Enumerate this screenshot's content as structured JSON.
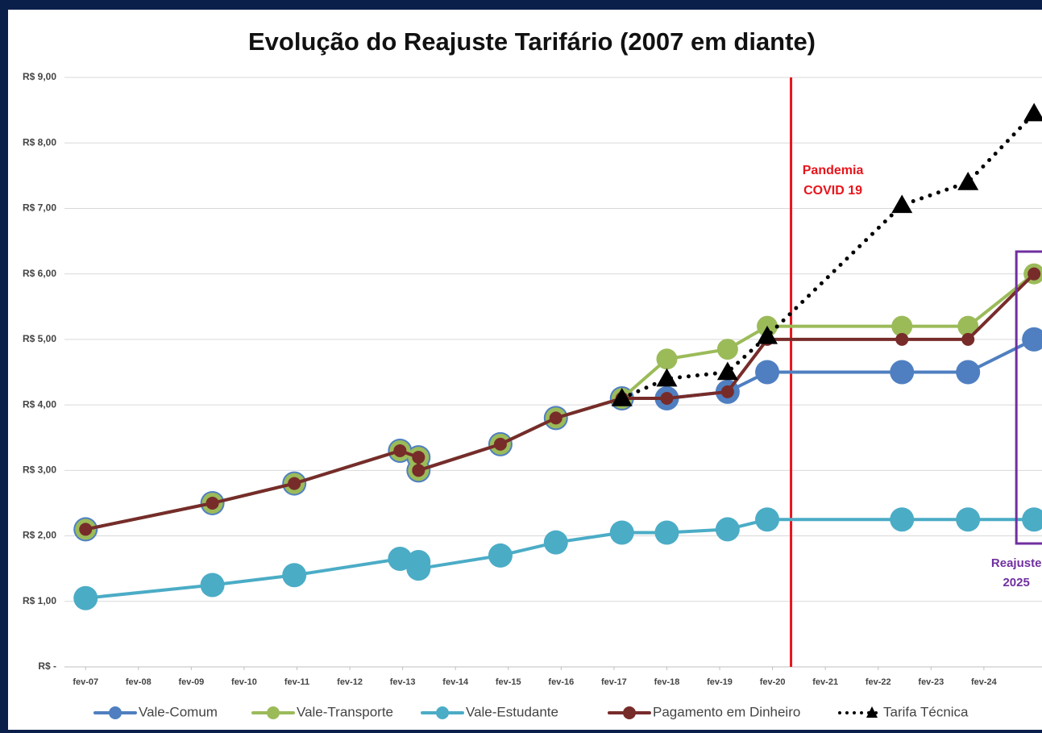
{
  "chart_data": {
    "type": "line",
    "title": "Evolução do Reajuste Tarifário (2007 em diante)",
    "x": [
      2007,
      2009.4,
      2010.95,
      2012.95,
      2013.3,
      2013.3,
      2014.85,
      2015.9,
      2017.15,
      2018.0,
      2019.15,
      2019.9,
      2022.45,
      2023.7,
      2024.95
    ],
    "xlim": [
      2006.6,
      2025.1
    ],
    "xticks": [
      {
        "value": 2007,
        "label": "fev-07"
      },
      {
        "value": 2008,
        "label": "fev-08"
      },
      {
        "value": 2009,
        "label": "fev-09"
      },
      {
        "value": 2010,
        "label": "fev-10"
      },
      {
        "value": 2011,
        "label": "fev-11"
      },
      {
        "value": 2012,
        "label": "fev-12"
      },
      {
        "value": 2013,
        "label": "fev-13"
      },
      {
        "value": 2014,
        "label": "fev-14"
      },
      {
        "value": 2015,
        "label": "fev-15"
      },
      {
        "value": 2016,
        "label": "fev-16"
      },
      {
        "value": 2017,
        "label": "fev-17"
      },
      {
        "value": 2018,
        "label": "fev-18"
      },
      {
        "value": 2019,
        "label": "fev-19"
      },
      {
        "value": 2020,
        "label": "fev-20"
      },
      {
        "value": 2021,
        "label": "fev-21"
      },
      {
        "value": 2022,
        "label": "fev-22"
      },
      {
        "value": 2023,
        "label": "fev-23"
      },
      {
        "value": 2024,
        "label": "fev-24"
      }
    ],
    "ylim": [
      0,
      9
    ],
    "yticks": [
      {
        "value": 0,
        "label": "R$ -"
      },
      {
        "value": 1,
        "label": "R$ 1,00"
      },
      {
        "value": 2,
        "label": "R$ 2,00"
      },
      {
        "value": 3,
        "label": "R$ 3,00"
      },
      {
        "value": 4,
        "label": "R$ 4,00"
      },
      {
        "value": 5,
        "label": "R$ 5,00"
      },
      {
        "value": 6,
        "label": "R$ 6,00"
      },
      {
        "value": 7,
        "label": "R$ 7,00"
      },
      {
        "value": 8,
        "label": "R$ 8,00"
      },
      {
        "value": 9,
        "label": "R$ 9,00"
      }
    ],
    "grid": true,
    "series": [
      {
        "name": "Vale-Comum",
        "color": "#4f7fc1",
        "marker": "circle",
        "values": [
          2.1,
          2.5,
          2.8,
          3.3,
          3.2,
          3.0,
          3.4,
          3.8,
          4.1,
          4.1,
          4.2,
          4.5,
          4.5,
          4.5,
          5.0
        ]
      },
      {
        "name": "Vale-Transporte",
        "color": "#9bbb59",
        "marker": "circle",
        "values": [
          2.1,
          2.5,
          2.8,
          3.3,
          3.2,
          3.0,
          3.4,
          3.8,
          4.1,
          4.7,
          4.85,
          5.2,
          5.2,
          5.2,
          6.0
        ]
      },
      {
        "name": "Vale-Estudante",
        "color": "#4bacc6",
        "marker": "circle",
        "values": [
          1.05,
          1.25,
          1.4,
          1.65,
          1.6,
          1.5,
          1.7,
          1.9,
          2.05,
          2.05,
          2.1,
          2.25,
          2.25,
          2.25,
          2.25
        ]
      },
      {
        "name": "Pagamento em Dinheiro",
        "color": "#772c2a",
        "marker": "circle",
        "values": [
          2.1,
          2.5,
          2.8,
          3.3,
          3.2,
          3.0,
          3.4,
          3.8,
          4.1,
          4.1,
          4.2,
          5.0,
          5.0,
          5.0,
          6.0
        ]
      },
      {
        "name": "Tarifa Técnica",
        "color": "#000000",
        "marker": "triangle",
        "line_style": "dotted",
        "values": [
          null,
          null,
          null,
          null,
          null,
          null,
          null,
          null,
          4.1,
          4.4,
          4.5,
          5.05,
          7.05,
          7.4,
          8.45
        ]
      }
    ],
    "vline": {
      "x": 2020.35,
      "color": "#e8141b",
      "lines": [
        "Pandemia",
        "COVID 19"
      ]
    },
    "box": {
      "color": "#7030a0",
      "lines": [
        "Reajuste",
        "2025"
      ]
    }
  }
}
